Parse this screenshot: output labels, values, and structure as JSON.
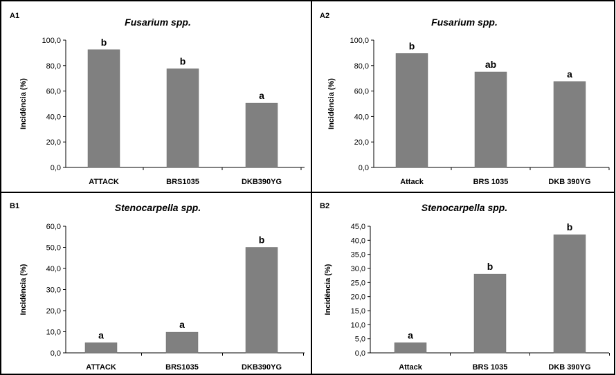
{
  "chart_data": [
    {
      "type": "bar",
      "panel_label": "A1",
      "title": "Fusarium spp.",
      "xlabel": "",
      "ylabel": "Incidência (%)",
      "categories": [
        "ATTACK",
        "BRS1035",
        "DKB390YG"
      ],
      "values": [
        92.5,
        77.5,
        50.5
      ],
      "letters": [
        "b",
        "b",
        "a"
      ],
      "ylim": [
        0,
        100
      ],
      "yticks": [
        "0,0",
        "20,0",
        "40,0",
        "60,0",
        "80,0",
        "100,0"
      ],
      "bar_color": "#808080",
      "grid": false,
      "legend": "none"
    },
    {
      "type": "bar",
      "panel_label": "A2",
      "title": "Fusarium spp.",
      "xlabel": "",
      "ylabel": "Incidência (%)",
      "categories": [
        "Attack",
        "BRS 1035",
        "DKB 390YG"
      ],
      "values": [
        89.5,
        75,
        67.5
      ],
      "letters": [
        "b",
        "ab",
        "a"
      ],
      "ylim": [
        0,
        100
      ],
      "yticks": [
        "0,0",
        "20,0",
        "40,0",
        "60,0",
        "80,0",
        "100,0"
      ],
      "bar_color": "#808080",
      "grid": false,
      "legend": "none"
    },
    {
      "type": "bar",
      "panel_label": "B1",
      "title": "Stenocarpella spp.",
      "xlabel": "",
      "ylabel": "Incidência (%)",
      "categories": [
        "ATTACK",
        "BRS1035",
        "DKB390YG"
      ],
      "values": [
        4.8,
        9.8,
        50
      ],
      "letters": [
        "a",
        "a",
        "b"
      ],
      "ylim": [
        0,
        60
      ],
      "yticks": [
        "0,0",
        "10,0",
        "20,0",
        "30,0",
        "40,0",
        "50,0",
        "60,0"
      ],
      "bar_color": "#808080",
      "grid": false,
      "legend": "none"
    },
    {
      "type": "bar",
      "panel_label": "B2",
      "title": "Stenocarpella spp.",
      "xlabel": "",
      "ylabel": "Incidência (%)",
      "categories": [
        "Attack",
        "BRS 1035",
        "DKB 390YG"
      ],
      "values": [
        3.6,
        28,
        42
      ],
      "letters": [
        "a",
        "b",
        "b"
      ],
      "ylim": [
        0,
        45
      ],
      "yticks": [
        "0,0",
        "5,0",
        "10,0",
        "15,0",
        "20,0",
        "25,0",
        "30,0",
        "35,0",
        "40,0",
        "45,0"
      ],
      "bar_color": "#808080",
      "grid": false,
      "legend": "none"
    }
  ]
}
